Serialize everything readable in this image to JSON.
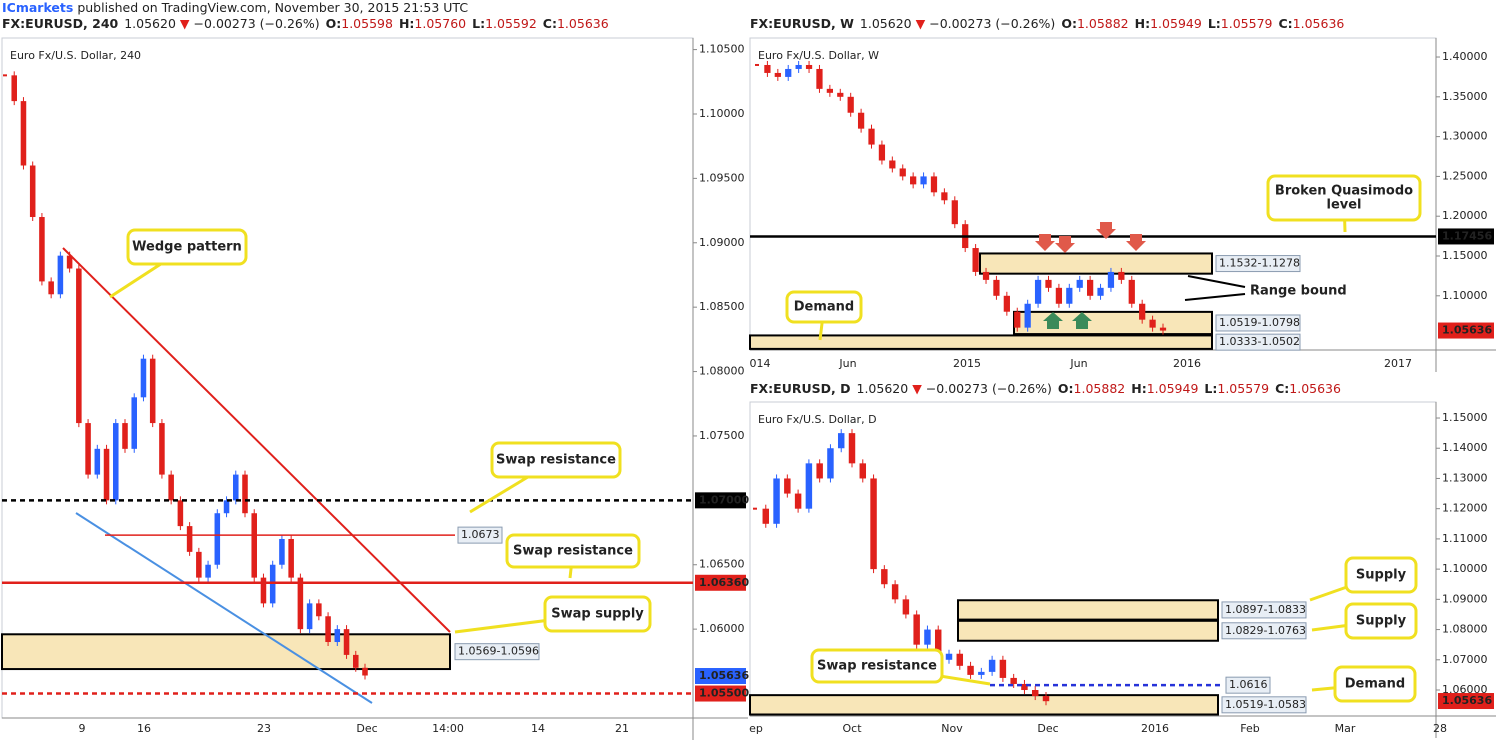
{
  "header": {
    "publisher": "ICmarkets",
    "published": "published on TradingView.com, November 30, 2015 21:53 UTC"
  },
  "panels": [
    {
      "symbol": "FX:EURUSD, 240",
      "last": "1.05620",
      "direction": "▼",
      "change": "−0.00273 (−0.26%)",
      "ohlc": [
        {
          "label": "O:",
          "value": "1.05598"
        },
        {
          "label": "H:",
          "value": "1.05760"
        },
        {
          "label": "L:",
          "value": "1.05592"
        },
        {
          "label": "C:",
          "value": "1.05636"
        }
      ],
      "title": "Euro Fx/U.S. Dollar, 240",
      "ylim": [
        1.0531,
        1.1059
      ],
      "yticks": [
        {
          "value": 1.06,
          "label": "1.06000"
        },
        {
          "value": 1.065,
          "label": "1.06500"
        },
        {
          "value": 1.075,
          "label": "1.07500"
        },
        {
          "value": 1.08,
          "label": "1.08000"
        },
        {
          "value": 1.085,
          "label": "1.08500"
        },
        {
          "value": 1.09,
          "label": "1.09000"
        },
        {
          "value": 1.095,
          "label": "1.09500"
        },
        {
          "value": 1.1,
          "label": "1.10000"
        },
        {
          "value": 1.105,
          "label": "1.10500"
        }
      ],
      "xticks": [
        "9",
        "16",
        "23",
        "Dec",
        "14:00",
        "14",
        "21"
      ],
      "closes": [
        1.103,
        1.101,
        1.096,
        1.092,
        1.087,
        1.086,
        1.089,
        1.088,
        1.076,
        1.072,
        1.074,
        1.07,
        1.076,
        1.074,
        1.078,
        1.081,
        1.076,
        1.072,
        1.07,
        1.068,
        1.066,
        1.064,
        1.065,
        1.069,
        1.07,
        1.072,
        1.069,
        1.064,
        1.062,
        1.065,
        1.067,
        1.064,
        1.06,
        1.062,
        1.061,
        1.059,
        1.06,
        1.058,
        1.057,
        1.0564
      ],
      "up_color": "#2962ff",
      "down_color": "#e0201b",
      "zones": [
        {
          "low": 1.0569,
          "high": 1.0596,
          "label": "1.0569-1.0596"
        }
      ],
      "levels": [
        {
          "value": 1.07,
          "label": "1.07000",
          "color": "#000000",
          "style": "dashed"
        },
        {
          "value": 1.0636,
          "label": "1.06360",
          "color": "#e0201b",
          "style": "solid"
        },
        {
          "value": 1.055,
          "label": "1.05500",
          "color": "#e0201b",
          "style": "dashed"
        },
        {
          "value": 1.0673,
          "label": "1.0673",
          "color": "#e0201b",
          "style": "thin"
        }
      ],
      "price_label": {
        "value": 1.05636,
        "label": "1.05636",
        "color": "#2962ff"
      },
      "callouts": [
        [
          "Wedge pattern"
        ],
        [
          "Swap resistance"
        ],
        [
          "Swap resistance"
        ],
        [
          "Swap supply"
        ]
      ]
    },
    {
      "symbol": "FX:EURUSD, W",
      "last": "1.05620",
      "direction": "▼",
      "change": "−0.00273 (−0.26%)",
      "ohlc": [
        {
          "label": "O:",
          "value": "1.05882"
        },
        {
          "label": "H:",
          "value": "1.05949"
        },
        {
          "label": "L:",
          "value": "1.05579"
        },
        {
          "label": "C:",
          "value": "1.05636"
        }
      ],
      "title": "Euro Fx/U.S. Dollar, W",
      "ylim": [
        1.0319,
        1.4239
      ],
      "yticks": [
        {
          "value": 1.1,
          "label": "1.10000"
        },
        {
          "value": 1.15,
          "label": "1.15000"
        },
        {
          "value": 1.2,
          "label": "1.20000"
        },
        {
          "value": 1.25,
          "label": "1.25000"
        },
        {
          "value": 1.3,
          "label": "1.30000"
        },
        {
          "value": 1.35,
          "label": "1.35000"
        },
        {
          "value": 1.4,
          "label": "1.40000"
        }
      ],
      "xticks": [
        "014",
        "Jun",
        "2015",
        "Jun",
        "2016",
        "2017"
      ],
      "closes": [
        1.39,
        1.38,
        1.375,
        1.385,
        1.39,
        1.385,
        1.36,
        1.355,
        1.35,
        1.33,
        1.31,
        1.29,
        1.27,
        1.26,
        1.25,
        1.24,
        1.25,
        1.23,
        1.22,
        1.19,
        1.16,
        1.13,
        1.12,
        1.1,
        1.08,
        1.06,
        1.09,
        1.12,
        1.11,
        1.09,
        1.11,
        1.12,
        1.1,
        1.11,
        1.13,
        1.12,
        1.09,
        1.07,
        1.06,
        1.0563
      ],
      "up_color": "#2962ff",
      "down_color": "#e0201b",
      "zones": [
        {
          "low": 1.1278,
          "high": 1.1532,
          "label": "1.1532-1.1278"
        },
        {
          "low": 1.0519,
          "high": 1.0798,
          "label": "1.0519-1.0798"
        },
        {
          "low": 1.0333,
          "high": 1.0502,
          "label": "1.0333-1.0502"
        }
      ],
      "levels": [
        {
          "value": 1.17456,
          "label": "1.17456",
          "color": "#000000",
          "style": "solid"
        }
      ],
      "price_label": {
        "value": 1.05636,
        "label": "1.05636",
        "color": "#e0201b"
      },
      "callouts": [
        [
          "Broken Quasimodo",
          "level"
        ],
        [
          "Demand"
        ],
        [
          "Range bound"
        ]
      ]
    },
    {
      "symbol": "FX:EURUSD, D",
      "last": "1.05620",
      "direction": "▼",
      "change": "−0.00273 (−0.26%)",
      "ohlc": [
        {
          "label": "O:",
          "value": "1.05882"
        },
        {
          "label": "H:",
          "value": "1.05949"
        },
        {
          "label": "L:",
          "value": "1.05579"
        },
        {
          "label": "C:",
          "value": "1.05636"
        }
      ],
      "title": "Euro Fx/U.S. Dollar, D",
      "ylim": [
        1.0514,
        1.1553
      ],
      "yticks": [
        {
          "value": 1.06,
          "label": "1.06000"
        },
        {
          "value": 1.07,
          "label": "1.07000"
        },
        {
          "value": 1.08,
          "label": "1.08000"
        },
        {
          "value": 1.09,
          "label": "1.09000"
        },
        {
          "value": 1.1,
          "label": "1.10000"
        },
        {
          "value": 1.11,
          "label": "1.11000"
        },
        {
          "value": 1.12,
          "label": "1.12000"
        },
        {
          "value": 1.13,
          "label": "1.13000"
        },
        {
          "value": 1.14,
          "label": "1.14000"
        },
        {
          "value": 1.15,
          "label": "1.15000"
        }
      ],
      "xticks": [
        "ep",
        "Oct",
        "Nov",
        "Dec",
        "2016",
        "Feb",
        "Mar",
        "28"
      ],
      "closes": [
        1.12,
        1.115,
        1.13,
        1.125,
        1.12,
        1.135,
        1.13,
        1.14,
        1.145,
        1.135,
        1.13,
        1.1,
        1.095,
        1.09,
        1.085,
        1.075,
        1.08,
        1.07,
        1.072,
        1.068,
        1.065,
        1.066,
        1.07,
        1.064,
        1.062,
        1.06,
        1.058,
        1.0563
      ],
      "up_color": "#2962ff",
      "down_color": "#e0201b",
      "zones": [
        {
          "low": 1.0833,
          "high": 1.0897,
          "label": "1.0897-1.0833"
        },
        {
          "low": 1.0763,
          "high": 1.0829,
          "label": "1.0829-1.0763"
        },
        {
          "low": 1.0519,
          "high": 1.0583,
          "label": "1.0519-1.0583"
        }
      ],
      "levels": [
        {
          "value": 1.0616,
          "label": "1.0616",
          "color": "#2633d9",
          "style": "dashed"
        }
      ],
      "price_label": {
        "value": 1.05636,
        "label": "1.05636",
        "color": "#e0201b"
      },
      "callouts": [
        [
          "Supply"
        ],
        [
          "Supply"
        ],
        [
          "Demand"
        ],
        [
          "Swap resistance"
        ]
      ]
    }
  ]
}
